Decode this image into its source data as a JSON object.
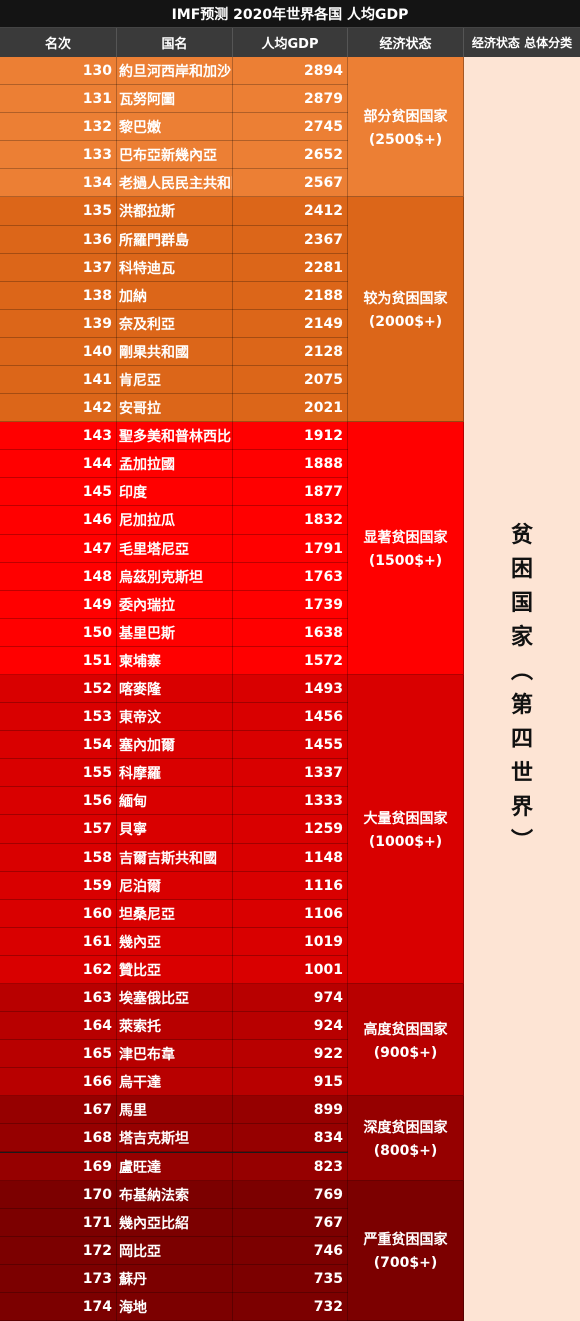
{
  "title": "IMF预测 2020年世界各国 人均GDP",
  "headers": [
    "名次",
    "国名",
    "人均GDP",
    "经济状态",
    "经济状态 总体分类"
  ],
  "overall_class": "贫困国家（第四世界）",
  "colors": {
    "title_bg": "#141414",
    "header_bg": "#3a3a3a",
    "overall_bg": "#fde4d4"
  },
  "groups": [
    {
      "status": "部分贫困国家",
      "threshold": "(2500$+)",
      "color": "#ec7f34"
    },
    {
      "status": "较为贫困国家",
      "threshold": "(2000$+)",
      "color": "#dc6619"
    },
    {
      "status": "显著贫困国家",
      "threshold": "(1500$+)",
      "color": "#ff0000"
    },
    {
      "status": "大量贫困国家",
      "threshold": "(1000$+)",
      "color": "#d90000"
    },
    {
      "status": "高度贫困国家",
      "threshold": "(900$+)",
      "color": "#b80000"
    },
    {
      "status": "深度贫困国家",
      "threshold": "(800$+)",
      "color": "#960000"
    },
    {
      "status": "严重贫困国家",
      "threshold": "(700$+)",
      "color": "#7c0000"
    }
  ],
  "chart_data": {
    "type": "table",
    "title": "IMF预测 2020年世界各国 人均GDP",
    "columns": [
      "名次",
      "国名",
      "人均GDP",
      "经济状态",
      "经济状态 总体分类"
    ],
    "rows": [
      {
        "rank": 130,
        "name": "約旦河西岸和加沙",
        "gdp": 2894,
        "group": 0
      },
      {
        "rank": 131,
        "name": "瓦努阿圖",
        "gdp": 2879,
        "group": 0
      },
      {
        "rank": 132,
        "name": "黎巴嫩",
        "gdp": 2745,
        "group": 0
      },
      {
        "rank": 133,
        "name": "巴布亞新幾內亞",
        "gdp": 2652,
        "group": 0
      },
      {
        "rank": 134,
        "name": "老撾人民民主共和國",
        "gdp": 2567,
        "group": 0
      },
      {
        "rank": 135,
        "name": "洪都拉斯",
        "gdp": 2412,
        "group": 1
      },
      {
        "rank": 136,
        "name": "所羅門群島",
        "gdp": 2367,
        "group": 1
      },
      {
        "rank": 137,
        "name": "科特迪瓦",
        "gdp": 2281,
        "group": 1
      },
      {
        "rank": 138,
        "name": "加納",
        "gdp": 2188,
        "group": 1
      },
      {
        "rank": 139,
        "name": "奈及利亞",
        "gdp": 2149,
        "group": 1
      },
      {
        "rank": 140,
        "name": "剛果共和國",
        "gdp": 2128,
        "group": 1
      },
      {
        "rank": 141,
        "name": "肯尼亞",
        "gdp": 2075,
        "group": 1
      },
      {
        "rank": 142,
        "name": "安哥拉",
        "gdp": 2021,
        "group": 1
      },
      {
        "rank": 143,
        "name": "聖多美和普林西比",
        "gdp": 1912,
        "group": 2
      },
      {
        "rank": 144,
        "name": "孟加拉國",
        "gdp": 1888,
        "group": 2
      },
      {
        "rank": 145,
        "name": "印度",
        "gdp": 1877,
        "group": 2
      },
      {
        "rank": 146,
        "name": "尼加拉瓜",
        "gdp": 1832,
        "group": 2
      },
      {
        "rank": 147,
        "name": "毛里塔尼亞",
        "gdp": 1791,
        "group": 2
      },
      {
        "rank": 148,
        "name": "烏茲別克斯坦",
        "gdp": 1763,
        "group": 2
      },
      {
        "rank": 149,
        "name": "委內瑞拉",
        "gdp": 1739,
        "group": 2
      },
      {
        "rank": 150,
        "name": "基里巴斯",
        "gdp": 1638,
        "group": 2
      },
      {
        "rank": 151,
        "name": "柬埔寨",
        "gdp": 1572,
        "group": 2
      },
      {
        "rank": 152,
        "name": "喀麥隆",
        "gdp": 1493,
        "group": 3
      },
      {
        "rank": 153,
        "name": "東帝汶",
        "gdp": 1456,
        "group": 3
      },
      {
        "rank": 154,
        "name": "塞內加爾",
        "gdp": 1455,
        "group": 3
      },
      {
        "rank": 155,
        "name": "科摩羅",
        "gdp": 1337,
        "group": 3
      },
      {
        "rank": 156,
        "name": "緬甸",
        "gdp": 1333,
        "group": 3
      },
      {
        "rank": 157,
        "name": "貝寧",
        "gdp": 1259,
        "group": 3
      },
      {
        "rank": 158,
        "name": "吉爾吉斯共和國",
        "gdp": 1148,
        "group": 3
      },
      {
        "rank": 159,
        "name": "尼泊爾",
        "gdp": 1116,
        "group": 3
      },
      {
        "rank": 160,
        "name": "坦桑尼亞",
        "gdp": 1106,
        "group": 3
      },
      {
        "rank": 161,
        "name": "幾內亞",
        "gdp": 1019,
        "group": 3
      },
      {
        "rank": 162,
        "name": "贊比亞",
        "gdp": 1001,
        "group": 3
      },
      {
        "rank": 163,
        "name": "埃塞俄比亞",
        "gdp": 974,
        "group": 4
      },
      {
        "rank": 164,
        "name": "萊索托",
        "gdp": 924,
        "group": 4
      },
      {
        "rank": 165,
        "name": "津巴布韋",
        "gdp": 922,
        "group": 4
      },
      {
        "rank": 166,
        "name": "烏干達",
        "gdp": 915,
        "group": 4
      },
      {
        "rank": 167,
        "name": "馬里",
        "gdp": 899,
        "group": 5
      },
      {
        "rank": 168,
        "name": "塔吉克斯坦",
        "gdp": 834,
        "group": 5
      },
      {
        "rank": 169,
        "name": "盧旺達",
        "gdp": 823,
        "group": 5
      },
      {
        "rank": 170,
        "name": "布基納法索",
        "gdp": 769,
        "group": 6
      },
      {
        "rank": 171,
        "name": "幾內亞比紹",
        "gdp": 767,
        "group": 6
      },
      {
        "rank": 172,
        "name": "岡比亞",
        "gdp": 746,
        "group": 6
      },
      {
        "rank": 173,
        "name": "蘇丹",
        "gdp": 735,
        "group": 6
      },
      {
        "rank": 174,
        "name": "海地",
        "gdp": 732,
        "group": 6
      }
    ]
  }
}
